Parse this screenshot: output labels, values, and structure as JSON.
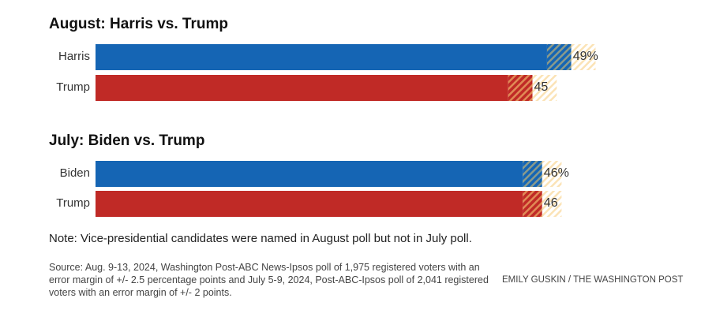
{
  "chart_data": [
    {
      "type": "bar",
      "title": "August: Harris vs. Trump",
      "categories": [
        "Harris",
        "Trump"
      ],
      "values": [
        49,
        45
      ],
      "value_labels": [
        "49%",
        "45"
      ],
      "margin_of_error": 2.5,
      "colors": [
        "#1565b4",
        "#c02a26"
      ]
    },
    {
      "type": "bar",
      "title": "July: Biden vs. Trump",
      "categories": [
        "Biden",
        "Trump"
      ],
      "values": [
        46,
        46
      ],
      "value_labels": [
        "46%",
        "46"
      ],
      "margin_of_error": 2,
      "colors": [
        "#1565b4",
        "#c02a26"
      ]
    }
  ],
  "note": "Note: Vice-presidential candidates were named in August poll but not in July poll.",
  "source": "Source: Aug. 9-13, 2024, Washington Post-ABC News-Ipsos poll of 1,975 registered voters with an error margin of +/- 2.5 percentage points and July 5-9, 2024, Post-ABC-Ipsos poll of 2,041 registered voters with an error margin of +/- 2 points.",
  "credit": "EMILY GUSKIN / THE WASHINGTON POST"
}
